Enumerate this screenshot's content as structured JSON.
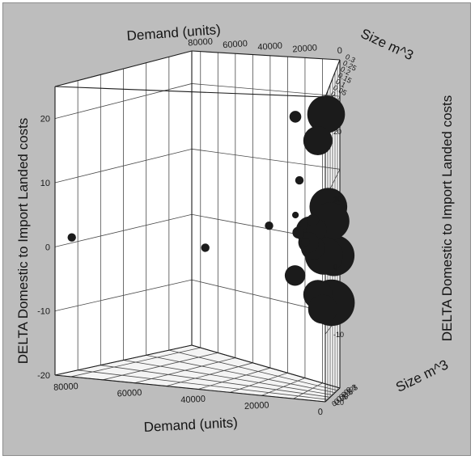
{
  "chart_data": {
    "type": "scatter",
    "axes": {
      "x": {
        "label": "Demand (units)",
        "range": [
          0,
          85000
        ],
        "ticks": [
          "80000",
          "60000",
          "40000",
          "20000",
          "0"
        ]
      },
      "y": {
        "label": "Size m^3",
        "range": [
          0,
          0.3
        ],
        "ticks": [
          "0",
          "0.05",
          "0.1",
          "0.15",
          "0.2",
          "0.25",
          "0.3"
        ]
      },
      "z": {
        "label": "DELTA Domestic to Import Landed costs",
        "range": [
          -20,
          25
        ],
        "ticks": [
          "20",
          "10",
          "0",
          "-10",
          "-20"
        ]
      }
    },
    "grid": true,
    "points": [
      {
        "x": 84000,
        "y": 0.03,
        "z": 1
      },
      {
        "x": 40000,
        "y": 0.03,
        "z": 1
      },
      {
        "x": 19000,
        "y": 0.03,
        "z": 5
      },
      {
        "x": 13000,
        "y": 0.1,
        "z": -3
      },
      {
        "x": 11000,
        "y": 0.05,
        "z": 21
      },
      {
        "x": 9000,
        "y": 0.03,
        "z": 12
      },
      {
        "x": 6000,
        "y": 0.15,
        "z": 16
      },
      {
        "x": 4000,
        "y": 0.2,
        "z": 19
      },
      {
        "x": 10000,
        "y": 0.02,
        "z": 7
      },
      {
        "x": 7000,
        "y": 0.03,
        "z": 3
      },
      {
        "x": 5000,
        "y": 0.05,
        "z": 6
      },
      {
        "x": 10000,
        "y": 0.05,
        "z": 4
      },
      {
        "x": 9000,
        "y": 0.15,
        "z": 3
      },
      {
        "x": 7000,
        "y": 0.12,
        "z": 1
      },
      {
        "x": 5000,
        "y": 0.1,
        "z": 4
      },
      {
        "x": 3000,
        "y": 0.2,
        "z": 6
      },
      {
        "x": 2000,
        "y": 0.2,
        "z": 4
      },
      {
        "x": 8000,
        "y": 0.1,
        "z": 2
      },
      {
        "x": 5000,
        "y": 0.2,
        "z": -1
      },
      {
        "x": 1000,
        "y": 0.22,
        "z": -1
      },
      {
        "x": 6000,
        "y": 0.15,
        "z": -6
      },
      {
        "x": 4000,
        "y": 0.15,
        "z": -8
      },
      {
        "x": 3000,
        "y": 0.25,
        "z": -8
      }
    ]
  }
}
